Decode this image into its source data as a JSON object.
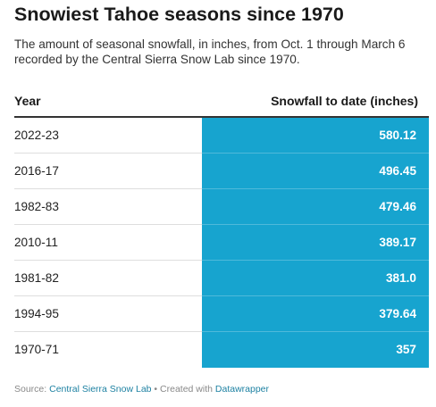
{
  "title": "Snowiest Tahoe seasons since 1970",
  "subtitle": "The amount of seasonal snowfall, in inches, from Oct. 1 through March 6 recorded by the Central Sierra Snow Lab since 1970.",
  "table": {
    "headers": {
      "year": "Year",
      "snowfall": "Snowfall to date (inches)"
    }
  },
  "footer": {
    "source_prefix": "Source: ",
    "source_name": "Central Sierra Snow Lab",
    "separator": " • Created with ",
    "tool_name": "Datawrapper"
  },
  "colors": {
    "value_column": "#17a4cf",
    "link": "#1d81a2"
  },
  "chart_data": {
    "type": "table",
    "title": "Snowiest Tahoe seasons since 1970",
    "columns": [
      "Year",
      "Snowfall to date (inches)"
    ],
    "rows": [
      {
        "year": "2022-23",
        "value": "580.12"
      },
      {
        "year": "2016-17",
        "value": "496.45"
      },
      {
        "year": "1982-83",
        "value": "479.46"
      },
      {
        "year": "2010-11",
        "value": "389.17"
      },
      {
        "year": "1981-82",
        "value": "381.0"
      },
      {
        "year": "1994-95",
        "value": "379.64"
      },
      {
        "year": "1970-71",
        "value": "357"
      }
    ]
  }
}
